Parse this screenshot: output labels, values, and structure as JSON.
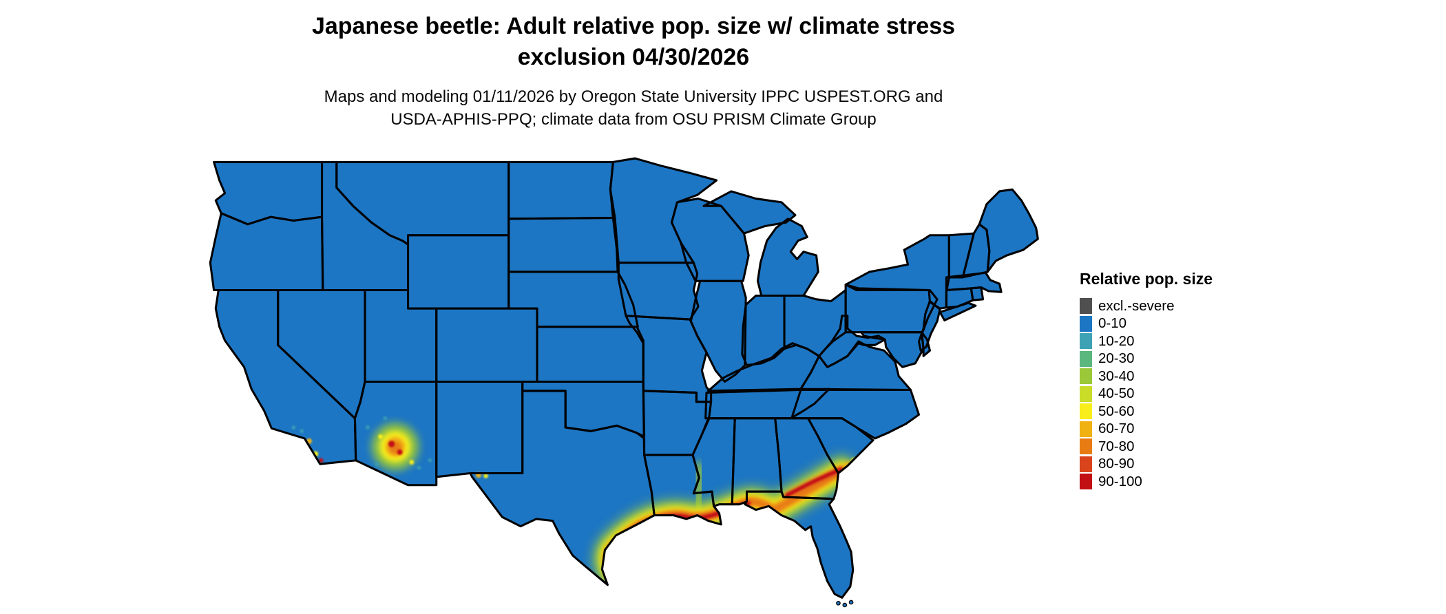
{
  "header": {
    "title_line1": "Japanese beetle: Adult relative pop. size w/ climate stress",
    "title_line2": "exclusion 04/30/2026",
    "subtitle_line1": "Maps and modeling 01/11/2026 by Oregon State University IPPC USPEST.ORG and",
    "subtitle_line2": "USDA-APHIS-PPQ; climate data from OSU PRISM Climate Group"
  },
  "legend": {
    "title": "Relative pop. size",
    "items": [
      {
        "label": "excl.-severe",
        "color": "#4f4f4f"
      },
      {
        "label": "0-10",
        "color": "#1d76c4"
      },
      {
        "label": "10-20",
        "color": "#3da3b4"
      },
      {
        "label": "20-30",
        "color": "#5ab77e"
      },
      {
        "label": "30-40",
        "color": "#9ac838"
      },
      {
        "label": "40-50",
        "color": "#c9dc28"
      },
      {
        "label": "50-60",
        "color": "#f7ee1b"
      },
      {
        "label": "60-70",
        "color": "#f0b112"
      },
      {
        "label": "70-80",
        "color": "#e87c12"
      },
      {
        "label": "80-90",
        "color": "#d9441c"
      },
      {
        "label": "90-100",
        "color": "#c21014"
      }
    ]
  },
  "map": {
    "base_fill": "#1d76c4",
    "border_color": "#000000",
    "background": "#ffffff"
  }
}
